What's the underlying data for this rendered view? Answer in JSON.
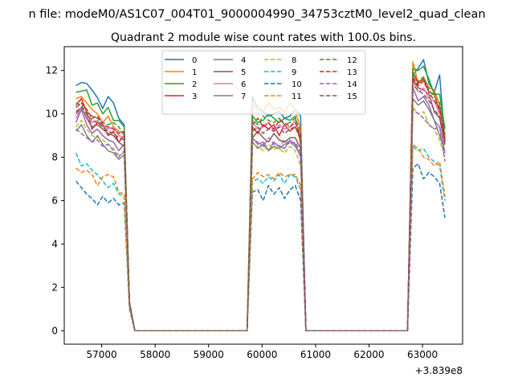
{
  "chart_data": {
    "type": "line",
    "title": "n file: modeM0/AS1C07_004T01_9000004990_34753cztM0_level2_quad_clean",
    "subtitle": "Quadrant 2 module wise count rates with 100.0s bins.",
    "xlabel": "",
    "ylabel": "",
    "x_offset_label": "+3.839e8",
    "xlim": [
      56300,
      63750
    ],
    "ylim": [
      -0.62,
      13.1
    ],
    "x_ticks": [
      57000,
      58000,
      59000,
      60000,
      61000,
      62000,
      63000
    ],
    "y_ticks": [
      0,
      2,
      4,
      6,
      8,
      10,
      12
    ],
    "grid": false,
    "legend_position": "top-center",
    "legend_columns": 4,
    "x_segment_a": [
      56520,
      56620,
      56720,
      56820,
      56920,
      57020,
      57120,
      57220,
      57320,
      57420,
      57520,
      57620,
      57720
    ],
    "x_segment_b": [
      59720,
      59820,
      59920,
      60020,
      60120,
      60220,
      60320,
      60420,
      60520,
      60620,
      60720,
      60820,
      60920
    ],
    "x_segment_c": [
      62720,
      62820,
      62920,
      63020,
      63120,
      63220,
      63320,
      63420
    ],
    "series": [
      {
        "name": "0",
        "color": "#1f77b4",
        "dash": "solid",
        "a": [
          11.3,
          11.45,
          11.4,
          11.1,
          10.75,
          10.25,
          10.8,
          10.5,
          9.8,
          9.5,
          1.3,
          0,
          0
        ],
        "b": [
          0,
          10.8,
          10.2,
          10.1,
          9.9,
          10.0,
          10.1,
          9.8,
          9.9,
          10.2,
          9.9,
          0,
          0
        ],
        "c": [
          0,
          11.8,
          12.1,
          12.5,
          11.4,
          11.0,
          11.8,
          8.7
        ]
      },
      {
        "name": "1",
        "color": "#ff7f0e",
        "dash": "solid",
        "a": [
          10.7,
          10.8,
          10.5,
          10.2,
          10.0,
          9.6,
          9.9,
          9.4,
          9.2,
          9.1,
          1.3,
          0,
          0
        ],
        "b": [
          0,
          10.3,
          10.4,
          10.1,
          10.5,
          10.2,
          10.3,
          10.1,
          10.5,
          10.2,
          9.3,
          0,
          0
        ],
        "c": [
          0,
          12.4,
          11.4,
          11.7,
          11.2,
          11.1,
          10.4,
          9.4
        ]
      },
      {
        "name": "2",
        "color": "#2ca02c",
        "dash": "solid",
        "a": [
          11.0,
          11.05,
          11.1,
          10.4,
          10.5,
          10.0,
          10.3,
          9.7,
          9.7,
          9.4,
          1.3,
          0,
          0
        ],
        "b": [
          0,
          9.9,
          9.6,
          9.7,
          10.0,
          9.8,
          9.6,
          9.8,
          9.7,
          9.9,
          8.6,
          0,
          0
        ],
        "c": [
          0,
          12.1,
          12.0,
          12.2,
          11.6,
          10.9,
          10.9,
          9.3
        ]
      },
      {
        "name": "3",
        "color": "#d62728",
        "dash": "solid",
        "a": [
          10.4,
          10.7,
          10.1,
          9.3,
          9.6,
          9.5,
          9.0,
          9.2,
          8.7,
          9.0,
          1.3,
          0,
          0
        ],
        "b": [
          0,
          9.4,
          9.1,
          9.5,
          9.3,
          9.5,
          9.0,
          9.5,
          9.2,
          9.4,
          8.9,
          0,
          0
        ],
        "c": [
          0,
          11.9,
          11.4,
          11.6,
          11.0,
          10.9,
          10.1,
          8.8
        ]
      },
      {
        "name": "4",
        "color": "#9467bd",
        "dash": "solid",
        "a": [
          9.6,
          10.2,
          9.5,
          9.1,
          9.3,
          9.0,
          8.8,
          8.7,
          8.3,
          8.6,
          1.3,
          0,
          0
        ],
        "b": [
          0,
          8.9,
          8.6,
          8.7,
          8.3,
          8.7,
          8.5,
          8.4,
          8.8,
          8.6,
          8.0,
          0,
          0
        ],
        "c": [
          0,
          11.2,
          10.6,
          10.8,
          10.4,
          9.7,
          9.4,
          8.2
        ]
      },
      {
        "name": "5",
        "color": "#8c564b",
        "dash": "solid",
        "a": [
          10.0,
          10.3,
          9.8,
          9.4,
          9.5,
          9.3,
          9.1,
          9.0,
          8.7,
          8.5,
          1.3,
          0,
          0
        ],
        "b": [
          0,
          8.9,
          9.2,
          8.9,
          8.7,
          9.1,
          8.8,
          8.7,
          8.9,
          8.9,
          8.4,
          0,
          0
        ],
        "c": [
          0,
          11.6,
          11.2,
          11.1,
          10.9,
          10.1,
          9.8,
          8.6
        ]
      },
      {
        "name": "6",
        "color": "#e377c2",
        "dash": "solid",
        "a": [
          9.8,
          10.3,
          9.9,
          9.6,
          9.7,
          9.5,
          9.3,
          9.4,
          9.0,
          8.9,
          1.3,
          0,
          0
        ],
        "b": [
          0,
          9.6,
          9.3,
          9.4,
          9.6,
          9.2,
          9.5,
          9.3,
          9.4,
          9.7,
          9.0,
          0,
          0
        ],
        "c": [
          0,
          11.5,
          11.0,
          11.2,
          10.7,
          10.6,
          10.0,
          9.1
        ]
      },
      {
        "name": "7",
        "color": "#7f7f7f",
        "dash": "solid",
        "a": [
          9.2,
          9.5,
          9.0,
          8.7,
          9.0,
          8.6,
          8.3,
          8.2,
          7.9,
          8.1,
          1.3,
          0,
          0
        ],
        "b": [
          0,
          8.7,
          8.4,
          8.6,
          8.3,
          8.5,
          8.4,
          8.6,
          8.7,
          8.5,
          8.1,
          0,
          0
        ],
        "c": [
          0,
          10.7,
          10.4,
          10.6,
          10.2,
          9.7,
          9.0,
          8.3
        ]
      },
      {
        "name": "8",
        "color": "#bcbd22",
        "dash": "dashed",
        "a": [
          9.4,
          9.7,
          9.3,
          9.0,
          8.9,
          8.8,
          8.6,
          8.4,
          8.1,
          8.2,
          1.3,
          0,
          0
        ],
        "b": [
          0,
          8.6,
          8.5,
          8.3,
          8.6,
          8.4,
          8.4,
          8.2,
          8.5,
          8.3,
          7.6,
          0,
          0
        ],
        "c": [
          0,
          10.3,
          10.0,
          10.1,
          9.5,
          9.3,
          8.8,
          8.0
        ]
      },
      {
        "name": "9",
        "color": "#17becf",
        "dash": "dashed",
        "a": [
          8.2,
          7.6,
          7.7,
          7.4,
          7.2,
          6.9,
          6.6,
          6.8,
          6.3,
          6.2,
          1.1,
          0,
          0
        ],
        "b": [
          0,
          6.9,
          7.0,
          6.8,
          7.1,
          6.9,
          7.2,
          6.8,
          7.2,
          7.1,
          6.5,
          0,
          0
        ],
        "c": [
          0,
          8.5,
          8.3,
          8.4,
          8.0,
          7.8,
          7.6,
          6.0
        ]
      },
      {
        "name": "10",
        "color": "#1f77b4",
        "dash": "dashed",
        "a": [
          6.9,
          6.6,
          6.3,
          6.1,
          5.8,
          6.2,
          5.9,
          6.1,
          5.8,
          5.9,
          1.0,
          0,
          0
        ],
        "b": [
          0,
          6.4,
          6.5,
          6.0,
          6.7,
          6.3,
          6.6,
          6.1,
          6.5,
          6.7,
          6.0,
          0,
          0
        ],
        "c": [
          0,
          7.5,
          7.7,
          7.0,
          7.3,
          7.1,
          6.8,
          5.2
        ]
      },
      {
        "name": "11",
        "color": "#ff7f0e",
        "dash": "dashed",
        "a": [
          7.5,
          7.3,
          7.4,
          7.2,
          6.7,
          7.1,
          7.2,
          7.1,
          6.4,
          6.3,
          1.1,
          0,
          0
        ],
        "b": [
          0,
          7.0,
          7.3,
          7.1,
          7.2,
          7.0,
          7.3,
          7.1,
          7.2,
          7.2,
          6.7,
          0,
          0
        ],
        "c": [
          0,
          8.6,
          8.4,
          8.0,
          7.9,
          7.6,
          7.8,
          6.2
        ]
      },
      {
        "name": "12",
        "color": "#2ca02c",
        "dash": "dashed",
        "a": [
          10.5,
          10.4,
          10.1,
          9.9,
          9.8,
          9.6,
          9.5,
          9.6,
          9.4,
          9.0,
          1.3,
          0,
          0
        ],
        "b": [
          0,
          9.7,
          9.5,
          9.9,
          9.7,
          9.6,
          9.8,
          9.5,
          9.6,
          9.8,
          9.2,
          0,
          0
        ],
        "c": [
          0,
          11.9,
          11.5,
          11.7,
          11.1,
          10.8,
          10.5,
          9.0
        ]
      },
      {
        "name": "13",
        "color": "#d62728",
        "dash": "dashed",
        "a": [
          10.3,
          10.5,
          10.2,
          9.8,
          9.9,
          9.5,
          9.4,
          9.3,
          9.1,
          9.2,
          1.3,
          0,
          0
        ],
        "b": [
          0,
          9.5,
          9.8,
          9.4,
          9.6,
          9.3,
          9.7,
          9.6,
          9.4,
          9.6,
          9.0,
          0,
          0
        ],
        "c": [
          0,
          11.7,
          11.3,
          11.5,
          11.0,
          10.6,
          10.3,
          8.9
        ]
      },
      {
        "name": "14",
        "color": "#9467bd",
        "dash": "dashed",
        "a": [
          9.3,
          9.1,
          8.9,
          8.7,
          8.8,
          8.5,
          8.6,
          8.3,
          8.0,
          8.3,
          1.2,
          0,
          0
        ],
        "b": [
          0,
          8.8,
          8.7,
          8.5,
          8.9,
          8.6,
          8.5,
          8.8,
          8.6,
          8.7,
          8.2,
          0,
          0
        ],
        "c": [
          0,
          10.2,
          10.0,
          9.8,
          9.5,
          9.3,
          9.4,
          7.8
        ]
      },
      {
        "name": "15",
        "color": "#8c564b",
        "dash": "dashed",
        "a": [
          10.1,
          10.3,
          10.0,
          9.7,
          9.6,
          9.4,
          9.2,
          9.1,
          8.9,
          8.8,
          1.3,
          0,
          0
        ],
        "b": [
          0,
          9.2,
          9.4,
          9.1,
          9.3,
          9.2,
          9.4,
          9.1,
          9.3,
          9.4,
          8.8,
          0,
          0
        ],
        "c": [
          0,
          11.3,
          11.1,
          10.9,
          10.6,
          10.2,
          9.9,
          8.5
        ]
      }
    ]
  }
}
